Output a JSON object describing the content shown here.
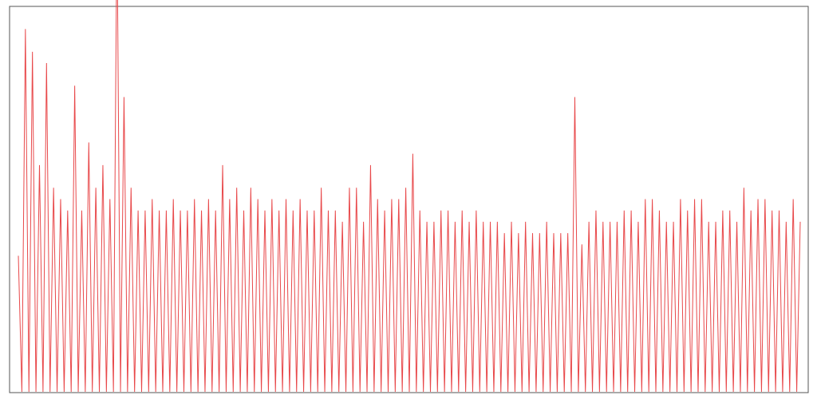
{
  "chart_data": {
    "type": "line",
    "title": "",
    "xlabel": "",
    "ylabel": "",
    "ylim": [
      0,
      34
    ],
    "grid": false,
    "legend": "none",
    "series": [
      {
        "color": "#e8484a",
        "values": [
          12,
          0,
          32,
          0,
          30,
          0,
          20,
          0,
          29,
          0,
          18,
          0,
          17,
          0,
          16,
          0,
          27,
          0,
          16,
          0,
          22,
          0,
          18,
          0,
          20,
          0,
          17,
          0,
          42,
          0,
          26,
          0,
          18,
          0,
          16,
          0,
          16,
          0,
          17,
          0,
          16,
          0,
          16,
          0,
          17,
          0,
          16,
          0,
          16,
          0,
          17,
          0,
          16,
          0,
          17,
          0,
          16,
          0,
          20,
          0,
          17,
          0,
          18,
          0,
          16,
          0,
          18,
          0,
          17,
          0,
          16,
          0,
          17,
          0,
          16,
          0,
          17,
          0,
          16,
          0,
          17,
          0,
          16,
          0,
          16,
          0,
          18,
          0,
          16,
          0,
          16,
          0,
          15,
          0,
          18,
          0,
          18,
          0,
          15,
          0,
          20,
          0,
          17,
          0,
          16,
          0,
          17,
          0,
          17,
          0,
          18,
          0,
          21,
          0,
          16,
          0,
          15,
          0,
          15,
          0,
          16,
          0,
          16,
          0,
          15,
          0,
          16,
          0,
          15,
          0,
          16,
          0,
          15,
          0,
          15,
          0,
          15,
          0,
          14,
          0,
          15,
          0,
          14,
          0,
          15,
          0,
          14,
          0,
          14,
          0,
          15,
          0,
          14,
          0,
          14,
          0,
          14,
          0,
          26,
          0,
          13,
          0,
          15,
          0,
          16,
          0,
          15,
          0,
          15,
          0,
          15,
          0,
          16,
          0,
          16,
          0,
          15,
          0,
          17,
          0,
          17,
          0,
          16,
          0,
          15,
          0,
          15,
          0,
          17,
          0,
          16,
          0,
          17,
          0,
          17,
          0,
          15,
          0,
          15,
          0,
          16,
          0,
          16,
          0,
          15,
          0,
          18,
          0,
          16,
          0,
          17,
          0,
          17,
          0,
          16,
          0,
          16,
          0,
          15,
          0,
          17,
          0,
          15
        ]
      }
    ]
  }
}
